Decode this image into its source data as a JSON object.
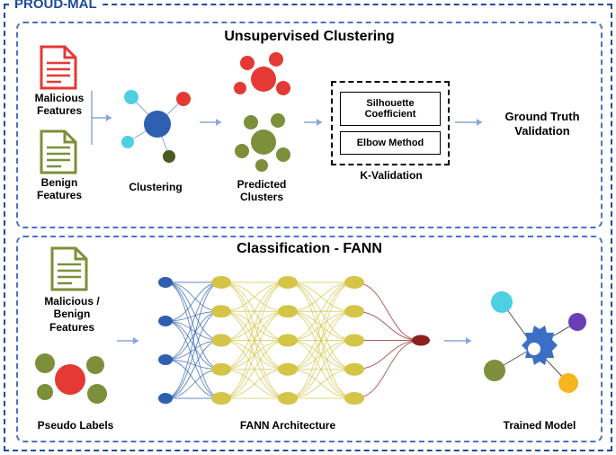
{
  "title": "PROUD-MAL",
  "panel1": {
    "title": "Unsupervised Clustering",
    "malicious_label": "Malicious\nFeatures",
    "benign_label": "Benign\nFeatures",
    "clustering_label": "Clustering",
    "predicted_label": "Predicted\nClusters",
    "kvalidation_label": "K-Validation",
    "silhouette": "Silhouette\nCoefficient",
    "elbow": "Elbow Method",
    "ground_truth": "Ground Truth\nValidation",
    "colors": {
      "red": "#e53935",
      "olive": "#7d8f3a",
      "blue": "#2e5fb0",
      "cyan": "#4dd0e1",
      "darkolive": "#4a5a20"
    }
  },
  "panel2": {
    "title": "Classification - FANN",
    "features_label": "Malicious /\nBenign\nFeatures",
    "pseudo_label": "Pseudo Labels",
    "arch_label": "FANN Architecture",
    "trained_label": "Trained Model",
    "colors": {
      "olive": "#7d8f3a",
      "red": "#e53935",
      "blue": "#2e5fb0",
      "yellow": "#d4c548",
      "darkred": "#8b2020",
      "cyan": "#4dd0e1",
      "purple": "#6a3fb5",
      "amber": "#f5b720",
      "gear": "#3a6fc5"
    }
  }
}
